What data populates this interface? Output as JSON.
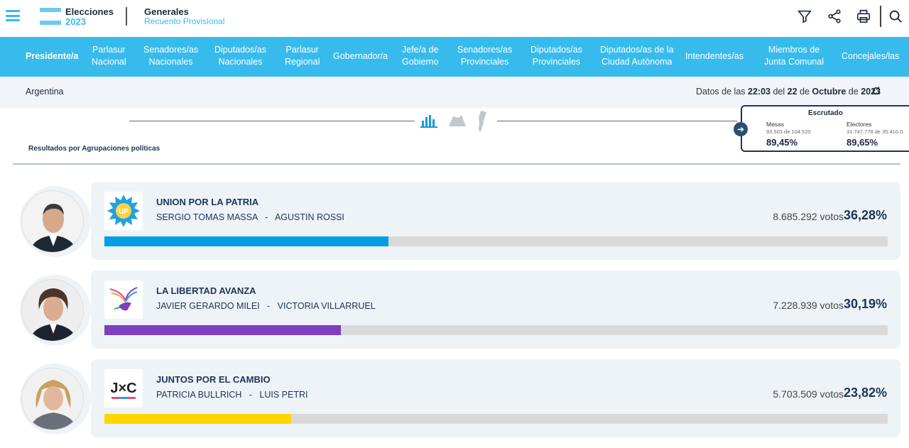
{
  "header": {
    "brand_line1": "Elecciones",
    "brand_line2": "2023",
    "election_type": "Generales",
    "count_type": "Recuento Provisional",
    "icons": [
      "menu-icon",
      "filter-icon",
      "share-icon",
      "print-icon",
      "search-icon"
    ]
  },
  "nav": {
    "items": [
      {
        "label": "Presidente/a",
        "active": true
      },
      {
        "label": "Parlasur\nNacional"
      },
      {
        "label": "Senadores/as\nNacionales"
      },
      {
        "label": "Diputados/as\nNacionales"
      },
      {
        "label": "Parlasur\nRegional"
      },
      {
        "label": "Gobernador/a"
      },
      {
        "label": "Jefe/a de\nGobierno"
      },
      {
        "label": "Senadores/as\nProvinciales"
      },
      {
        "label": "Diputados/as\nProvinciales"
      },
      {
        "label": "Diputados/as de la\nCiudad Autónoma"
      },
      {
        "label": "Intendentes/as"
      },
      {
        "label": "Miembros de\nJunta Comunal"
      },
      {
        "label": "Concejales/las"
      }
    ]
  },
  "subbar": {
    "country": "Argentina",
    "datos_prefix": "Datos de las ",
    "time": "22:03",
    "del": " del ",
    "day": "22",
    "de1": " de ",
    "month": "Octubre",
    "de2": " de ",
    "year": "2023"
  },
  "view": {
    "results_label": "Resultados por Agrupaciones políticas",
    "icons": [
      "bar-chart-icon",
      "map-region-icon",
      "argentina-map-icon"
    ]
  },
  "escrutado": {
    "title": "Escrutado",
    "mesas_label": "Mesas",
    "mesas_count": "93.503 de 104.520",
    "mesas_pct": "89,45%",
    "electores_label": "Electores",
    "electores_count": "31.747.778 de 35.410.0",
    "electores_pct": "89,65%"
  },
  "results": [
    {
      "party": "UNION POR LA PATRIA",
      "candidates": "SERGIO TOMAS MASSA   -   AGUSTIN ROSSI",
      "votes": "8.685.292 votos",
      "pct": "36,28%",
      "pct_value": 36.28,
      "color": "#009fe3",
      "logo": "up-logo"
    },
    {
      "party": "LA LIBERTAD AVANZA",
      "candidates": "JAVIER GERARDO MILEI   -   VICTORIA VILLARRUEL",
      "votes": "7.228.939 votos",
      "pct": "30,19%",
      "pct_value": 30.19,
      "color": "#7e3fbf",
      "logo": "lla-logo"
    },
    {
      "party": "JUNTOS POR EL CAMBIO",
      "candidates": "PATRICIA BULLRICH   -   LUIS PETRI",
      "votes": "5.703.509 votos",
      "pct": "23,82%",
      "pct_value": 23.82,
      "color": "#ffd600",
      "logo": "jxc-logo",
      "logo_text": "J×C"
    }
  ]
}
